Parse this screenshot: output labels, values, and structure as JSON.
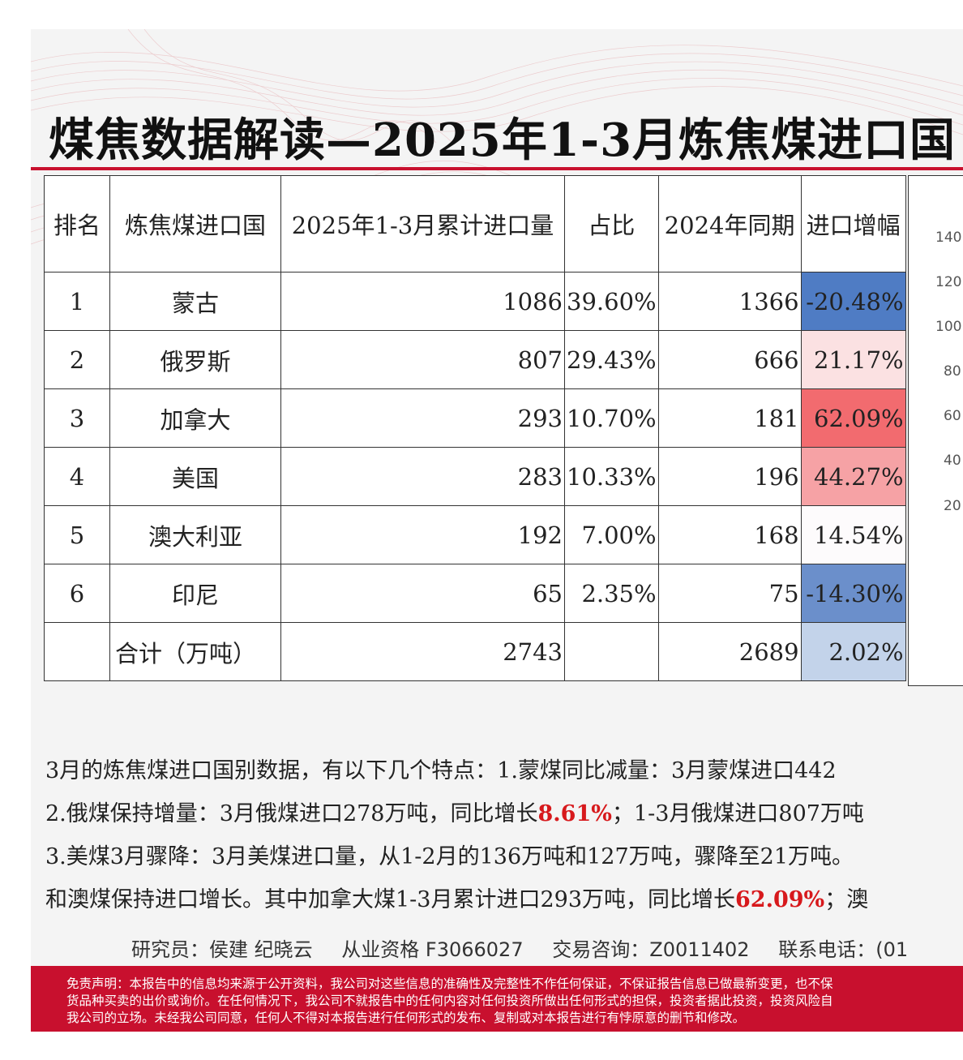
{
  "title": "煤焦数据解读—2025年1-3月炼焦煤进口国",
  "table": {
    "headers": {
      "rank": "排名",
      "country": "炼焦煤进口国",
      "volume": "2025年1-3月累计进口量",
      "share": "占比",
      "prev": "2024年同期",
      "growth": "进口增幅"
    },
    "rows": [
      {
        "rank": "1",
        "country": "蒙古",
        "volume": "1086",
        "share": "39.60%",
        "prev": "1366",
        "growth": "-20.48%",
        "growth_color": "#4f7cc4"
      },
      {
        "rank": "2",
        "country": "俄罗斯",
        "volume": "807",
        "share": "29.43%",
        "prev": "666",
        "growth": "21.17%",
        "growth_color": "#fbe1e2"
      },
      {
        "rank": "3",
        "country": "加拿大",
        "volume": "293",
        "share": "10.70%",
        "prev": "181",
        "growth": "62.09%",
        "growth_color": "#f26b6f"
      },
      {
        "rank": "4",
        "country": "美国",
        "volume": "283",
        "share": "10.33%",
        "prev": "196",
        "growth": "44.27%",
        "growth_color": "#f6a2a5"
      },
      {
        "rank": "5",
        "country": "澳大利亚",
        "volume": "192",
        "share": "7.00%",
        "prev": "168",
        "growth": "14.54%",
        "growth_color": "#fdfbfc"
      },
      {
        "rank": "6",
        "country": "印尼",
        "volume": "65",
        "share": "2.35%",
        "prev": "75",
        "growth": "-14.30%",
        "growth_color": "#6b8fcb"
      }
    ],
    "total": {
      "rank": "",
      "country": "合计（万吨）",
      "volume": "2743",
      "share": "",
      "prev": "2689",
      "growth": "2.02%",
      "growth_color": "#c3d3ea"
    }
  },
  "side_chart": {
    "ytick_labels": [
      "140",
      "120",
      "100",
      "80",
      "60",
      "40",
      "20"
    ]
  },
  "paragraph": {
    "line1": "3月的炼焦煤进口国别数据，有以下几个特点：1.蒙煤同比减量：3月蒙煤进口442",
    "line2_pre": "2.俄煤保持增量：3月俄煤进口278万吨，同比增长",
    "line2_hl": "8.61%",
    "line2_post": "；1-3月俄煤进口807万吨",
    "line3": "3.美煤3月骤降：3月美煤进口量，从1-2月的136万吨和127万吨，骤降至21万吨。",
    "line4_pre": "和澳煤保持进口增长。其中加拿大煤1-3月累计进口293万吨，同比增长",
    "line4_hl": "62.09%",
    "line4_post": "；澳"
  },
  "contact": {
    "researcher": "研究员：侯建 纪晓云",
    "qualification": "从业资格 F3066027",
    "consult": "交易咨询：Z0011402",
    "phone": "联系电话：(01"
  },
  "disclaimer": {
    "line1": "免责声明：本报告中的信息均来源于公开资料，我公司对这些信息的准确性及完整性不作任何保证，不保证报告信息已做最新变更，也不保",
    "line2": "货品种买卖的出价或询价。在任何情况下，我公司不就报告中的任何内容对任何投资所做出任何形式的担保，投资者据此投资，投资风险自",
    "line3": "我公司的立场。未经我公司同意，任何人不得对本报告进行任何形式的发布、复制或对本报告进行有悖原意的删节和修改。"
  },
  "colors": {
    "accent_red": "#c8102e",
    "highlight_red": "#d7191c"
  }
}
